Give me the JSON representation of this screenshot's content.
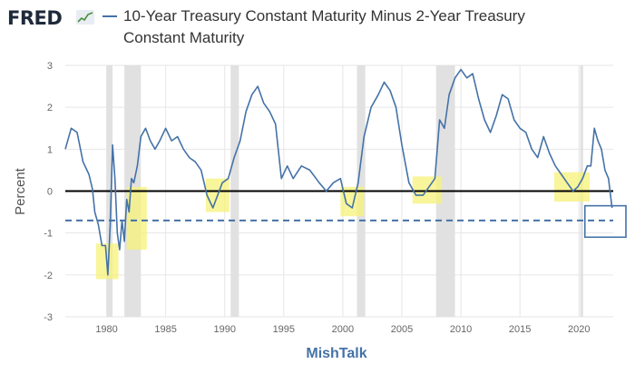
{
  "header": {
    "logo_text": "FRED",
    "logo_icon": "line-chart-icon"
  },
  "chart_data": {
    "type": "line",
    "title": "10-Year Treasury Constant Maturity Minus 2-Year Treasury Constant Maturity",
    "xlabel": "MishTalk",
    "ylabel": "Percent",
    "xlim": [
      1976.5,
      2022.9
    ],
    "ylim": [
      -3,
      3
    ],
    "x_ticks": [
      "1980",
      "1985",
      "1990",
      "1995",
      "2000",
      "2005",
      "2010",
      "2015",
      "2020"
    ],
    "y_ticks": [
      "-3",
      "-2",
      "-1",
      "0",
      "1",
      "2",
      "3"
    ],
    "grid": true,
    "series": [
      {
        "name": "10-Year Treasury Constant Maturity Minus 2-Year Treasury Constant Maturity",
        "color": "#4572a7",
        "x": [
          1976.5,
          1977.0,
          1977.5,
          1978.0,
          1978.5,
          1978.8,
          1979.0,
          1979.3,
          1979.6,
          1979.9,
          1980.1,
          1980.3,
          1980.5,
          1980.7,
          1980.9,
          1981.1,
          1981.3,
          1981.5,
          1981.7,
          1981.9,
          1982.1,
          1982.3,
          1982.6,
          1982.9,
          1983.3,
          1983.7,
          1984.1,
          1984.5,
          1985.0,
          1985.5,
          1986.0,
          1986.5,
          1987.0,
          1987.5,
          1988.0,
          1988.5,
          1989.0,
          1989.4,
          1989.8,
          1990.3,
          1990.8,
          1991.3,
          1991.8,
          1992.3,
          1992.8,
          1993.3,
          1993.8,
          1994.3,
          1994.8,
          1995.3,
          1995.8,
          1996.5,
          1997.2,
          1998.0,
          1998.6,
          1999.2,
          1999.8,
          2000.3,
          2000.8,
          2001.3,
          2001.8,
          2002.4,
          2003.0,
          2003.5,
          2004.0,
          2004.5,
          2005.0,
          2005.6,
          2006.2,
          2006.8,
          2007.3,
          2007.8,
          2008.2,
          2008.6,
          2009.0,
          2009.5,
          2010.0,
          2010.5,
          2011.0,
          2011.5,
          2012.0,
          2012.5,
          2013.0,
          2013.5,
          2014.0,
          2014.5,
          2015.0,
          2015.5,
          2016.0,
          2016.5,
          2017.0,
          2017.5,
          2018.0,
          2018.5,
          2019.0,
          2019.5,
          2019.9,
          2020.3,
          2020.7,
          2021.0,
          2021.3,
          2021.6,
          2021.9,
          2022.2,
          2022.5,
          2022.8
        ],
        "values": [
          1.0,
          1.5,
          1.4,
          0.7,
          0.4,
          0.05,
          -0.5,
          -0.8,
          -1.3,
          -1.3,
          -2.0,
          -0.8,
          1.1,
          0.3,
          -1.0,
          -1.4,
          -0.7,
          -1.2,
          -0.2,
          -0.5,
          0.3,
          0.2,
          0.6,
          1.3,
          1.5,
          1.2,
          1.0,
          1.2,
          1.5,
          1.2,
          1.3,
          1.0,
          0.8,
          0.7,
          0.5,
          -0.1,
          -0.4,
          -0.1,
          0.2,
          0.3,
          0.8,
          1.2,
          1.9,
          2.3,
          2.5,
          2.1,
          1.9,
          1.6,
          0.3,
          0.6,
          0.3,
          0.6,
          0.5,
          0.2,
          0.0,
          0.2,
          0.3,
          -0.3,
          -0.4,
          0.2,
          1.3,
          2.0,
          2.3,
          2.6,
          2.4,
          2.0,
          1.1,
          0.2,
          -0.1,
          -0.1,
          0.1,
          0.3,
          1.7,
          1.5,
          2.3,
          2.7,
          2.9,
          2.7,
          2.8,
          2.2,
          1.7,
          1.4,
          1.8,
          2.3,
          2.2,
          1.7,
          1.5,
          1.4,
          1.0,
          0.8,
          1.3,
          0.9,
          0.6,
          0.4,
          0.2,
          0.0,
          0.1,
          0.3,
          0.6,
          0.6,
          1.5,
          1.2,
          1.0,
          0.5,
          0.3,
          -0.4
        ]
      }
    ],
    "reference_lines": [
      {
        "y": 0,
        "style": "solid",
        "color": "#000000"
      },
      {
        "y": -0.7,
        "style": "dashed",
        "color": "#4572a7"
      }
    ],
    "recessions": [
      [
        1980.0,
        1980.5
      ],
      [
        1981.5,
        1982.9
      ],
      [
        1990.5,
        1991.2
      ],
      [
        2001.2,
        2001.9
      ],
      [
        2007.9,
        2009.5
      ],
      [
        2020.1,
        2020.35
      ]
    ],
    "highlights": [
      {
        "x0": 1979.1,
        "x1": 1981.0,
        "y0": -2.1,
        "y1": -1.25,
        "color": "#f6f27a"
      },
      {
        "x0": 1981.7,
        "x1": 1983.4,
        "y0": -1.4,
        "y1": 0.1,
        "color": "#f6f27a"
      },
      {
        "x0": 1988.4,
        "x1": 1990.4,
        "y0": -0.5,
        "y1": 0.3,
        "color": "#f6f27a"
      },
      {
        "x0": 1999.8,
        "x1": 2001.8,
        "y0": -0.6,
        "y1": 0.1,
        "color": "#f6f27a"
      },
      {
        "x0": 2005.9,
        "x1": 2008.4,
        "y0": -0.3,
        "y1": 0.35,
        "color": "#f6f27a"
      },
      {
        "x0": 2017.9,
        "x1": 2020.9,
        "y0": -0.25,
        "y1": 0.45,
        "color": "#f6f27a"
      }
    ],
    "callout_box": {
      "x0": 2020.5,
      "x1": 2024.0,
      "y0": -1.1,
      "y1": -0.35,
      "color": "#4572a7"
    }
  }
}
